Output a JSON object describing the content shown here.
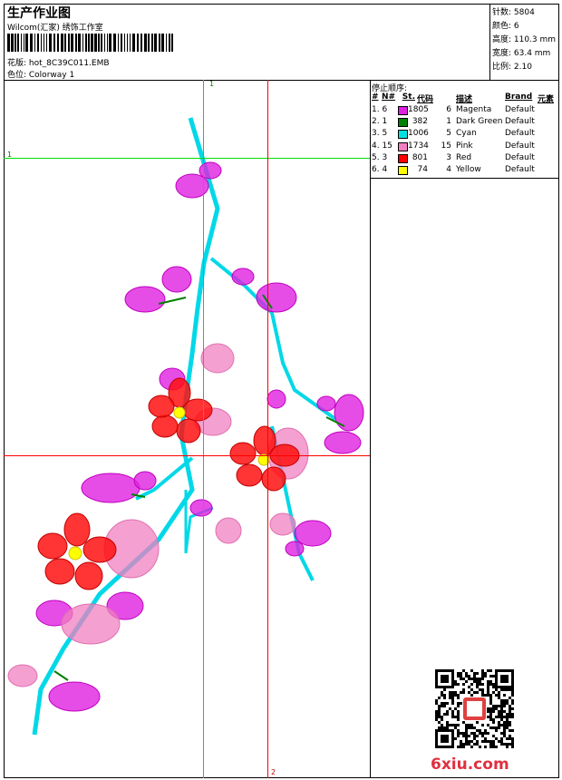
{
  "header": {
    "title": "生产作业图",
    "studio": "Wilcom(汇家) 绣饰工作室",
    "design": "花版: hot_8C39C011.EMB",
    "colorway": "色位: Colorway 1"
  },
  "info": [
    "针数: 5804",
    "颜色: 6",
    "高度: 110.3 mm",
    "宽度: 63.4 mm",
    "比例: 2.10"
  ],
  "stop_sequence": {
    "title": "停止顺序:",
    "columns": [
      "#",
      "N#",
      "St.",
      "代码",
      "描述",
      "Brand",
      "元素"
    ],
    "rows": [
      {
        "index": "1. 6",
        "color": "#e020e0",
        "stitches": "1805",
        "code": "6",
        "description": "Magenta",
        "brand": "Default"
      },
      {
        "index": "2. 1",
        "color": "#008000",
        "stitches": "382",
        "code": "1",
        "description": "Dark Green",
        "brand": "Default"
      },
      {
        "index": "3. 5",
        "color": "#00e0e0",
        "stitches": "1006",
        "code": "5",
        "description": "Cyan",
        "brand": "Default"
      },
      {
        "index": "4. 15",
        "color": "#f080c0",
        "stitches": "1734",
        "code": "15",
        "description": "Pink",
        "brand": "Default"
      },
      {
        "index": "5. 3",
        "color": "#ff0000",
        "stitches": "801",
        "code": "3",
        "description": "Red",
        "brand": "Default"
      },
      {
        "index": "6. 4",
        "color": "#ffff00",
        "stitches": "74",
        "code": "4",
        "description": "Yellow",
        "brand": "Default"
      }
    ]
  },
  "guides": {
    "labels": [
      "1",
      "1",
      "2"
    ]
  },
  "watermark": "6xiu.com"
}
